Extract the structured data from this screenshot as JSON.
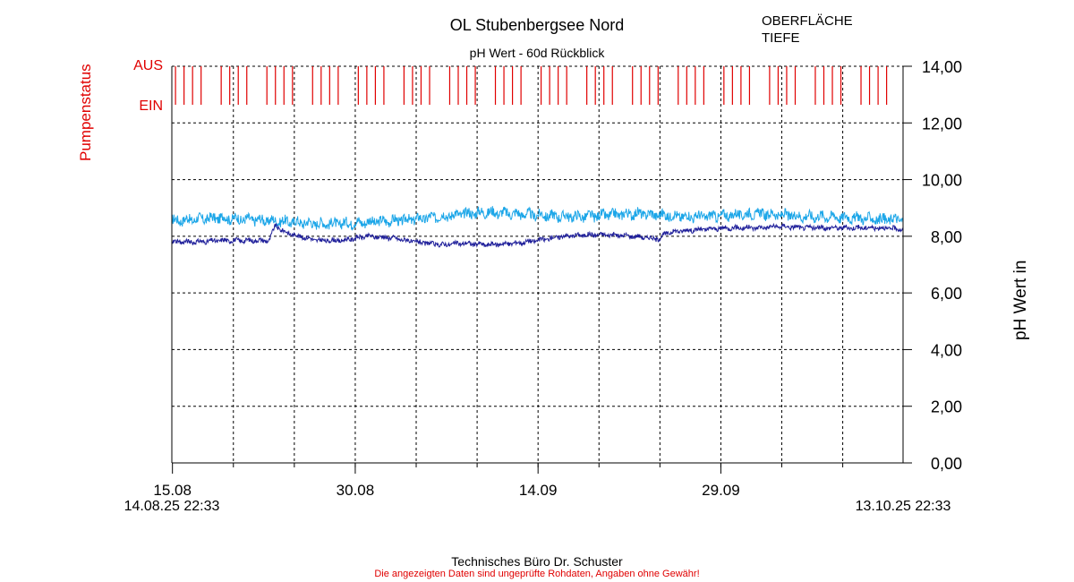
{
  "chart_data": {
    "type": "line",
    "title": "OL Stubenbergsee Nord",
    "subtitle": "pH Wert - 60d Rückblick",
    "ylabel": "pH Wert in",
    "ylim": [
      0,
      14
    ],
    "y_ticks": [
      "0,00",
      "2,00",
      "4,00",
      "6,00",
      "8,00",
      "10,00",
      "12,00",
      "14,00"
    ],
    "x_range_days": [
      0,
      60
    ],
    "x_ticks": [
      {
        "label": "15.08",
        "day": 0.05
      },
      {
        "label": "30.08",
        "day": 15.05
      },
      {
        "label": "14.09",
        "day": 30.05
      },
      {
        "label": "29.09",
        "day": 45.05
      }
    ],
    "x_start_label": "14.08.25 22:33",
    "x_end_label": "13.10.25 22:33",
    "grid": true,
    "series": [
      {
        "name": "OBERFLÄCHE",
        "color": "#1ca6e8",
        "x_days": [
          0,
          2,
          4,
          6,
          8,
          10,
          12,
          14,
          16,
          18,
          20,
          22,
          24,
          26,
          28,
          30,
          32,
          34,
          36,
          38,
          40,
          42,
          44,
          46,
          48,
          50,
          52,
          54,
          56,
          58,
          60
        ],
        "values": [
          8.55,
          8.6,
          8.65,
          8.6,
          8.55,
          8.5,
          8.45,
          8.45,
          8.5,
          8.55,
          8.6,
          8.7,
          8.8,
          8.85,
          8.8,
          8.75,
          8.7,
          8.7,
          8.75,
          8.8,
          8.75,
          8.7,
          8.7,
          8.75,
          8.8,
          8.75,
          8.7,
          8.7,
          8.65,
          8.6,
          8.6
        ]
      },
      {
        "name": "TIEFE",
        "color": "#1f1f9a",
        "x_days": [
          0,
          2,
          4,
          6,
          8,
          8.5,
          9,
          10,
          12,
          14,
          16,
          18,
          20,
          22,
          24,
          26,
          28,
          30,
          32,
          34,
          36,
          38,
          40,
          40.5,
          41,
          42,
          44,
          46,
          48,
          50,
          52,
          54,
          56,
          58,
          60
        ],
        "values": [
          7.8,
          7.8,
          7.85,
          7.85,
          7.85,
          8.4,
          8.2,
          8.05,
          7.85,
          7.85,
          8.0,
          7.95,
          7.8,
          7.7,
          7.75,
          7.7,
          7.75,
          7.85,
          8.0,
          8.05,
          8.05,
          8.0,
          7.9,
          8.1,
          8.15,
          8.2,
          8.25,
          8.3,
          8.3,
          8.35,
          8.3,
          8.3,
          8.3,
          8.3,
          8.25
        ]
      }
    ],
    "pump_status": {
      "label": "Pumpenstatus",
      "on_label": "EIN",
      "off_label": "AUS",
      "color": "#e00000",
      "cycle_days": 3.75,
      "lines_per_cycle": 4
    }
  },
  "footer": {
    "company": "Technisches Büro Dr. Schuster",
    "disclaimer": "Die angezeigten Daten sind ungeprüfte Rohdaten, Angaben ohne Gewähr!"
  }
}
